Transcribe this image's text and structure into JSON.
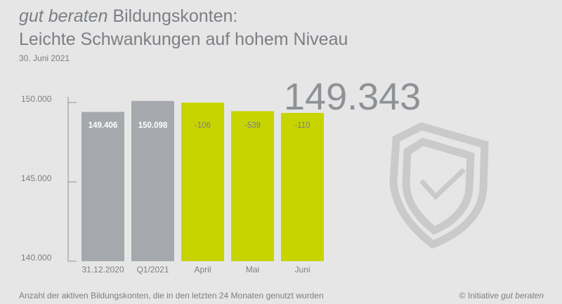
{
  "header": {
    "title_italic": "gut beraten",
    "title_rest": " Bildungskonten:",
    "subtitle": "Leichte Schwankungen auf hohem Niveau",
    "date": "30. Juni 2021"
  },
  "highlight": {
    "value": "149.343"
  },
  "footer": {
    "note": "Anzahl der aktiven Bildungskonten, die in den letzten 24 Monaten genutzt wurden",
    "copyright_prefix": "© Initiative ",
    "copyright_italic": "gut beraten"
  },
  "icons": {
    "shield": "shield-check-icon"
  },
  "colors": {
    "background": "#e6e6e6",
    "gray_bar": "#a5a8ac",
    "green_bar": "#c8d400",
    "text": "#7b7f84",
    "shield": "#cacaca"
  },
  "chart_data": {
    "type": "bar",
    "categories": [
      "31.12.2020",
      "Q1/2021",
      "April",
      "Mai",
      "Juni"
    ],
    "values": [
      149406,
      150098,
      149992,
      149453,
      149343
    ],
    "data_labels": [
      "149.406",
      "150.098",
      "-106",
      "-539",
      "-110"
    ],
    "bar_colors": [
      "#a5a8ac",
      "#a5a8ac",
      "#c8d400",
      "#c8d400",
      "#c8d400"
    ],
    "label_colors": [
      "#ffffff",
      "#ffffff",
      "#7b7f84",
      "#7b7f84",
      "#7b7f84"
    ],
    "ylim": [
      140000,
      150000
    ],
    "yticks": [
      140000,
      145000,
      150000
    ],
    "ytick_labels": [
      "140.000",
      "145.000",
      "150.000"
    ],
    "title": "",
    "xlabel": "",
    "ylabel": ""
  }
}
